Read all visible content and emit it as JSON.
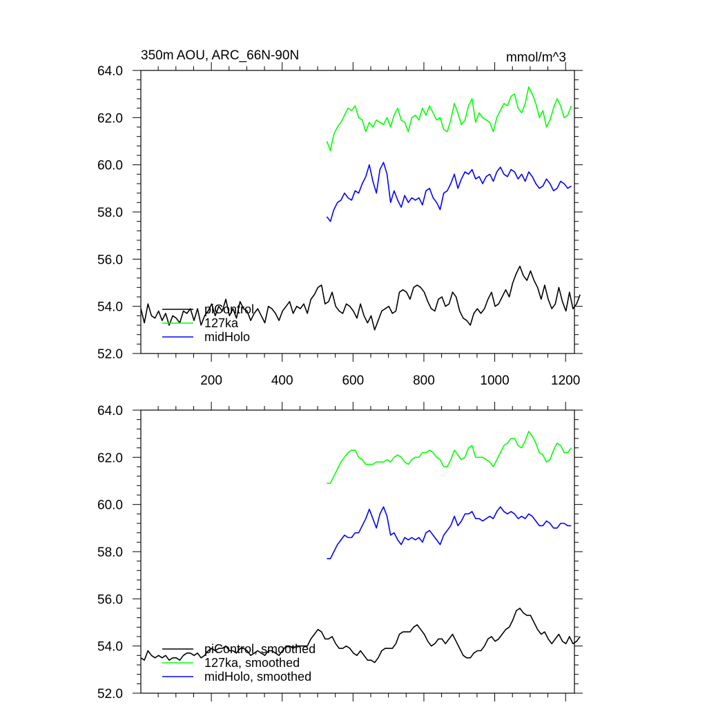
{
  "figure": {
    "title_left": "350m AOU, ARC_66N-90N",
    "title_right": "mmol/m^3"
  },
  "chart_data": [
    {
      "type": "line",
      "name": "raw",
      "xlim": [
        1,
        1225
      ],
      "ylim": [
        52.0,
        64.0
      ],
      "xticks": [
        200,
        400,
        600,
        800,
        1000,
        1200
      ],
      "xtick_labels": [
        "200",
        "400",
        "600",
        "800",
        "1000",
        "1200"
      ],
      "yticks": [
        52.0,
        54.0,
        56.0,
        58.0,
        60.0,
        62.0,
        64.0
      ],
      "ytick_labels": [
        "52.0",
        "54.0",
        "56.0",
        "58.0",
        "60.0",
        "62.0",
        "64.0"
      ],
      "legend_position": "bottom-left",
      "legend": [
        "piControl",
        "127ka",
        "midHolo"
      ],
      "series": [
        {
          "name": "piControl",
          "color": "#000000",
          "x_start": 1,
          "x_step": 10,
          "values": [
            53.9,
            53.3,
            54.1,
            53.6,
            53.5,
            53.8,
            53.4,
            53.7,
            53.2,
            53.6,
            53.5,
            53.3,
            53.8,
            53.7,
            53.9,
            53.4,
            53.9,
            53.2,
            53.6,
            53.8,
            54.1,
            53.6,
            54.0,
            53.8,
            54.3,
            53.6,
            53.9,
            53.5,
            54.2,
            53.9,
            53.8,
            53.4,
            53.7,
            53.9,
            53.6,
            53.3,
            54.0,
            53.9,
            53.7,
            53.4,
            53.8,
            54.0,
            54.2,
            53.7,
            54.0,
            53.9,
            54.1,
            53.7,
            54.3,
            54.5,
            54.8,
            54.9,
            54.1,
            54.2,
            54.6,
            54.0,
            53.8,
            53.7,
            54.1,
            54.0,
            53.8,
            53.5,
            54.1,
            53.6,
            53.3,
            53.6,
            53.0,
            53.4,
            53.8,
            53.9,
            54.0,
            53.7,
            53.8,
            54.6,
            54.7,
            54.6,
            54.3,
            54.8,
            54.9,
            54.8,
            54.6,
            54.2,
            53.9,
            53.8,
            54.3,
            54.4,
            54.0,
            54.1,
            54.6,
            54.4,
            53.8,
            53.5,
            53.4,
            53.2,
            53.7,
            53.9,
            53.7,
            53.9,
            54.3,
            54.6,
            54.0,
            54.1,
            54.4,
            54.7,
            54.4,
            55.0,
            55.4,
            55.7,
            55.3,
            55.1,
            55.5,
            55.1,
            54.8,
            54.3,
            54.9,
            54.3,
            53.9,
            54.1,
            54.8,
            54.2,
            53.8,
            54.6,
            53.9,
            54.1,
            54.5
          ]
        },
        {
          "name": "127ka",
          "color": "#00ff00",
          "x_start": 526,
          "x_step": 10,
          "values": [
            61.0,
            60.6,
            61.3,
            61.6,
            61.8,
            62.1,
            62.4,
            62.3,
            62.5,
            62.0,
            61.9,
            61.4,
            61.8,
            61.6,
            61.9,
            61.8,
            61.7,
            62.0,
            61.6,
            62.1,
            62.4,
            61.9,
            61.8,
            61.4,
            62.0,
            62.1,
            61.9,
            62.4,
            62.1,
            62.5,
            62.2,
            61.9,
            62.0,
            61.5,
            61.4,
            61.9,
            62.6,
            62.2,
            61.7,
            61.9,
            62.5,
            62.8,
            61.8,
            62.2,
            62.0,
            61.9,
            61.8,
            61.4,
            62.0,
            62.3,
            62.6,
            62.5,
            62.9,
            63.0,
            62.4,
            62.2,
            62.6,
            63.3,
            63.0,
            62.6,
            62.0,
            62.3,
            61.6,
            61.9,
            62.4,
            62.8,
            62.5,
            62.0,
            62.1,
            62.5
          ]
        },
        {
          "name": "midHolo",
          "color": "#0000ff",
          "x_start": 526,
          "x_step": 10,
          "values": [
            57.8,
            57.6,
            58.1,
            58.4,
            58.5,
            58.8,
            58.6,
            58.5,
            58.9,
            58.8,
            59.2,
            59.5,
            60.0,
            59.3,
            58.8,
            59.8,
            60.1,
            59.6,
            58.4,
            58.9,
            58.5,
            58.2,
            58.7,
            58.4,
            58.6,
            58.5,
            58.6,
            58.3,
            58.9,
            59.0,
            58.6,
            58.4,
            58.1,
            58.8,
            58.9,
            59.2,
            59.6,
            59.0,
            59.4,
            59.7,
            59.6,
            59.8,
            59.4,
            59.5,
            59.2,
            59.5,
            59.6,
            59.3,
            59.7,
            59.9,
            59.6,
            59.5,
            59.8,
            59.7,
            59.4,
            59.6,
            59.3,
            59.7,
            59.5,
            59.2,
            59.0,
            59.1,
            59.4,
            59.2,
            58.9,
            59.0,
            59.3,
            59.2,
            59.0,
            59.1
          ]
        }
      ]
    },
    {
      "type": "line",
      "name": "smoothed",
      "xlim": [
        1,
        1225
      ],
      "ylim": [
        52.0,
        64.0
      ],
      "xticks": [
        200,
        400,
        600,
        800,
        1000,
        1200
      ],
      "yticks": [
        52.0,
        54.0,
        56.0,
        58.0,
        60.0,
        62.0,
        64.0
      ],
      "ytick_labels": [
        "52.0",
        "54.0",
        "56.0",
        "58.0",
        "60.0",
        "62.0",
        "64.0"
      ],
      "legend_position": "bottom-left",
      "legend": [
        "piControl, smoothed",
        "127ka, smoothed",
        "midHolo, smoothed"
      ],
      "series": [
        {
          "name": "piControl, smoothed",
          "color": "#000000",
          "x_start": 1,
          "x_step": 10,
          "values": [
            53.5,
            53.4,
            53.8,
            53.6,
            53.5,
            53.6,
            53.5,
            53.6,
            53.4,
            53.5,
            53.5,
            53.4,
            53.6,
            53.7,
            53.7,
            53.6,
            53.7,
            53.5,
            53.6,
            53.8,
            53.9,
            53.8,
            53.9,
            53.9,
            54.0,
            53.8,
            53.8,
            53.7,
            53.9,
            53.9,
            53.8,
            53.6,
            53.7,
            53.8,
            53.7,
            53.6,
            53.8,
            53.8,
            53.7,
            53.6,
            53.8,
            54.0,
            54.0,
            53.9,
            54.0,
            54.0,
            54.0,
            54.0,
            54.3,
            54.5,
            54.7,
            54.6,
            54.3,
            54.3,
            54.4,
            54.1,
            53.9,
            53.9,
            54.0,
            53.9,
            53.7,
            53.6,
            53.8,
            53.6,
            53.4,
            53.4,
            53.3,
            53.5,
            53.8,
            53.9,
            53.9,
            53.9,
            54.1,
            54.5,
            54.6,
            54.6,
            54.6,
            54.8,
            54.9,
            54.7,
            54.5,
            54.2,
            54.0,
            54.1,
            54.3,
            54.3,
            54.1,
            54.3,
            54.5,
            54.2,
            53.9,
            53.6,
            53.5,
            53.5,
            53.7,
            53.8,
            53.8,
            54.0,
            54.3,
            54.4,
            54.2,
            54.3,
            54.5,
            54.7,
            54.8,
            55.1,
            55.5,
            55.6,
            55.4,
            55.3,
            55.3,
            55.0,
            54.7,
            54.5,
            54.6,
            54.3,
            54.1,
            54.3,
            54.5,
            54.2,
            54.1,
            54.4,
            54.1,
            54.2,
            54.4
          ]
        },
        {
          "name": "127ka, smoothed",
          "color": "#00ff00",
          "x_start": 526,
          "x_step": 10,
          "values": [
            60.9,
            60.9,
            61.2,
            61.5,
            61.8,
            62.0,
            62.2,
            62.3,
            62.3,
            62.0,
            61.9,
            61.7,
            61.7,
            61.7,
            61.8,
            61.8,
            61.8,
            61.9,
            61.8,
            62.0,
            62.1,
            62.0,
            61.8,
            61.7,
            61.9,
            62.0,
            62.0,
            62.2,
            62.2,
            62.3,
            62.2,
            62.0,
            61.9,
            61.6,
            61.6,
            61.9,
            62.3,
            62.1,
            61.9,
            62.0,
            62.4,
            62.5,
            62.0,
            62.0,
            62.0,
            61.9,
            61.8,
            61.6,
            61.9,
            62.2,
            62.5,
            62.6,
            62.8,
            62.8,
            62.5,
            62.4,
            62.7,
            63.1,
            62.9,
            62.6,
            62.2,
            62.1,
            61.8,
            61.9,
            62.3,
            62.6,
            62.5,
            62.2,
            62.2,
            62.4
          ]
        },
        {
          "name": "midHolo, smoothed",
          "color": "#0000ff",
          "x_start": 526,
          "x_step": 10,
          "values": [
            57.7,
            57.7,
            58.0,
            58.3,
            58.5,
            58.7,
            58.6,
            58.6,
            58.8,
            58.8,
            59.1,
            59.4,
            59.8,
            59.4,
            59.0,
            59.6,
            59.9,
            59.5,
            58.7,
            58.8,
            58.5,
            58.3,
            58.6,
            58.5,
            58.6,
            58.5,
            58.6,
            58.4,
            58.8,
            58.9,
            58.7,
            58.5,
            58.3,
            58.7,
            58.9,
            59.1,
            59.5,
            59.1,
            59.3,
            59.6,
            59.6,
            59.7,
            59.4,
            59.4,
            59.3,
            59.4,
            59.5,
            59.4,
            59.7,
            59.9,
            59.7,
            59.6,
            59.7,
            59.6,
            59.4,
            59.5,
            59.4,
            59.6,
            59.5,
            59.3,
            59.1,
            59.1,
            59.3,
            59.2,
            59.0,
            59.0,
            59.2,
            59.2,
            59.1,
            59.1
          ]
        }
      ]
    }
  ]
}
